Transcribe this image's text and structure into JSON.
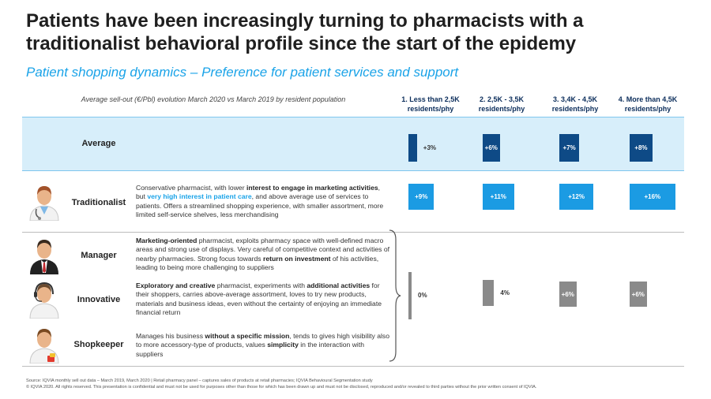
{
  "title": "Patients have been increasingly turning to pharmacists with a traditionalist behavioral profile since the start of the epidemy",
  "subtitle": "Patient shopping dynamics – Preference for patient services and support",
  "footer": {
    "source": "Source: IQVIA monthly sell out data – March 2019, March 2020 | Retail pharmacy panel – captures sales of products at retail pharmacies; IQVIA Behavioural Segmentation study",
    "copyright": "© IQVIA 2020. All rights reserved. This presentation is confidential and must not be used for purposes other than those for which has been drawn up and must not be disclosed, reproduced and/or revealed to third parties without the prior written consent of IQVIA."
  },
  "rows": {
    "average": {
      "label": "Average"
    },
    "traditionalist": {
      "label": "Traditionalist"
    },
    "manager": {
      "label": "Manager"
    },
    "innovative": {
      "label": "Innovative"
    },
    "shopkeeper": {
      "label": "Shopkeeper"
    }
  },
  "descriptions": {
    "traditionalist": [
      {
        "t": "Conservative pharmacist, with lower "
      },
      {
        "t": "interest to engage in marketing activities",
        "s": "b"
      },
      {
        "t": ", but "
      },
      {
        "t": "very high interest in patient care",
        "s": "hl"
      },
      {
        "t": ", and above average use of services to patients. Offers a streamlined shopping experience, with smaller assortment, more limited self-service shelves, less merchandising"
      }
    ],
    "manager": [
      {
        "t": "Marketing-oriented",
        "s": "b"
      },
      {
        "t": " pharmacist, exploits pharmacy space with well-defined macro areas and strong use of displays. Very careful of competitive context and activities of nearby pharmacies. Strong focus towards "
      },
      {
        "t": "return on investment",
        "s": "b"
      },
      {
        "t": " of his activities, leading to being more challenging to suppliers"
      }
    ],
    "innovative": [
      {
        "t": "Exploratory and creative",
        "s": "b"
      },
      {
        "t": " pharmacist, experiments with "
      },
      {
        "t": "additional activities",
        "s": "b"
      },
      {
        "t": " for their shoppers, carries above-average assortment, loves to try new products, materials and business ideas, even without the certainty of enjoying an immediate financial return"
      }
    ],
    "shopkeeper": [
      {
        "t": "Manages his business "
      },
      {
        "t": "without a specific mission",
        "s": "b"
      },
      {
        "t": ", tends to gives high visibility also to more accessory-type of products, values "
      },
      {
        "t": "simplicity",
        "s": "b"
      },
      {
        "t": " in the interaction with suppliers"
      }
    ]
  },
  "chart_data": {
    "type": "bar",
    "title": "Average sell-out (€/Pbl) evolution March 2020 vs March 2019 by resident population",
    "unit": "%",
    "categories": [
      "1. Less than 2,5K residents/phy",
      "2. 2,5K - 3,5K residents/phy",
      "3. 3,4K - 4,5K residents/phy",
      "4. More than 4,5K residents/phy"
    ],
    "series": [
      {
        "name": "Average",
        "values": [
          3,
          6,
          7,
          8
        ],
        "labels": [
          "+3%",
          "+6%",
          "+7%",
          "+8%"
        ],
        "color": "#0e4a86"
      },
      {
        "name": "Traditionalist",
        "values": [
          9,
          11,
          12,
          16
        ],
        "labels": [
          "+9%",
          "+11%",
          "+12%",
          "+16%"
        ],
        "color": "#1b9be3"
      },
      {
        "name": "Manager, Innovative, Shopkeeper",
        "values": [
          0,
          4,
          6,
          6
        ],
        "labels": [
          "0%",
          "4%",
          "+6%",
          "+6%"
        ],
        "color": "#8a8a8a"
      }
    ]
  }
}
